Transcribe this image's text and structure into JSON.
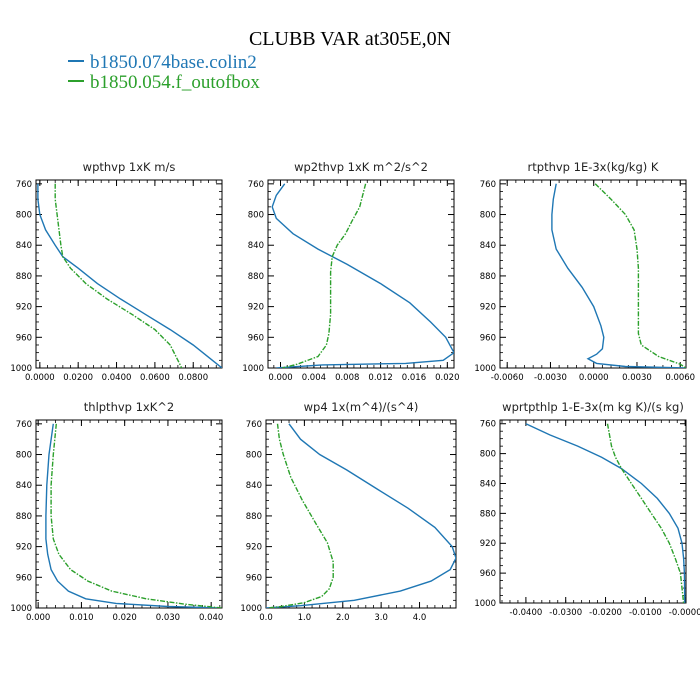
{
  "title": "CLUBB VAR at305E,0N",
  "colors": {
    "series_1": "#1f77b4",
    "series_2": "#2ca02c"
  },
  "legend": [
    {
      "label": "b1850.074base.colin2",
      "color": "#1f77b4"
    },
    {
      "label": "b1850.054.f_outofbox",
      "color": "#2ca02c"
    }
  ],
  "chart_data": [
    {
      "type": "line",
      "title": "wpthvp  1xK m/s",
      "xlim": [
        -0.002,
        0.095
      ],
      "ylim": [
        1000,
        755
      ],
      "y_inverted": true,
      "xticks": [
        "0.0000",
        "0.0200",
        "0.0400",
        "0.0600",
        "0.0800"
      ],
      "xtick_values": [
        0,
        0.02,
        0.04,
        0.06,
        0.08
      ],
      "yticks": [
        "760",
        "800",
        "840",
        "880",
        "920",
        "960",
        "1000"
      ],
      "ytick_values": [
        760,
        800,
        840,
        880,
        920,
        960,
        1000
      ],
      "series": [
        {
          "name": "b1850.074base.colin2",
          "x": [
            -0.001,
            -0.001,
            0.0,
            0.003,
            0.008,
            0.012,
            0.02,
            0.03,
            0.042,
            0.055,
            0.068,
            0.08,
            0.09,
            0.095
          ],
          "y": [
            760,
            780,
            800,
            820,
            840,
            855,
            870,
            890,
            910,
            930,
            950,
            970,
            990,
            1000
          ]
        },
        {
          "name": "b1850.054.f_outofbox",
          "x": [
            0.008,
            0.008,
            0.009,
            0.01,
            0.011,
            0.012,
            0.016,
            0.024,
            0.035,
            0.048,
            0.06,
            0.068,
            0.072,
            0.074
          ],
          "y": [
            760,
            780,
            800,
            820,
            840,
            855,
            870,
            890,
            910,
            930,
            950,
            970,
            990,
            1000
          ]
        }
      ]
    },
    {
      "type": "line",
      "title": "wp2thvp  1xK m^2/s^2",
      "xlim": [
        -0.0015,
        0.0208
      ],
      "ylim": [
        1000,
        755
      ],
      "y_inverted": true,
      "xticks": [
        "0.000",
        "0.004",
        "0.008",
        "0.012",
        "0.016",
        "0.020"
      ],
      "xtick_values": [
        0,
        0.004,
        0.008,
        0.012,
        0.016,
        0.02
      ],
      "yticks": [
        "760",
        "800",
        "840",
        "880",
        "920",
        "960",
        "1000"
      ],
      "ytick_values": [
        760,
        800,
        840,
        880,
        920,
        960,
        1000
      ],
      "series": [
        {
          "name": "b1850.074base.colin2",
          "x": [
            0.0005,
            -0.0005,
            -0.001,
            -0.0005,
            0.0015,
            0.0045,
            0.008,
            0.012,
            0.0155,
            0.018,
            0.0198,
            0.0208,
            0.0195,
            0.015,
            0.005,
            -0.0005
          ],
          "y": [
            760,
            775,
            790,
            805,
            825,
            845,
            865,
            890,
            915,
            940,
            960,
            980,
            990,
            994,
            996,
            1000
          ]
        },
        {
          "name": "b1850.054.f_outofbox",
          "x": [
            0.0102,
            0.0095,
            0.0085,
            0.0078,
            0.0068,
            0.0062,
            0.006,
            0.006,
            0.006,
            0.0058,
            0.0055,
            0.0045,
            0.002,
            0.0002
          ],
          "y": [
            760,
            790,
            810,
            825,
            840,
            855,
            875,
            900,
            930,
            955,
            970,
            985,
            995,
            1000
          ]
        }
      ]
    },
    {
      "type": "line",
      "title": "rtpthvp  1E-3x(kg/kg) K",
      "xlim": [
        -0.0065,
        0.0064
      ],
      "ylim": [
        1000,
        755
      ],
      "y_inverted": true,
      "xticks": [
        "-0.0060",
        "-0.0030",
        "0.0000",
        "0.0030",
        "0.0060"
      ],
      "xtick_values": [
        -0.006,
        -0.003,
        0,
        0.003,
        0.006
      ],
      "yticks": [
        "760",
        "800",
        "840",
        "880",
        "920",
        "960",
        "1000"
      ],
      "ytick_values": [
        760,
        800,
        840,
        880,
        920,
        960,
        1000
      ],
      "series": [
        {
          "name": "b1850.074base.colin2",
          "x": [
            -0.0026,
            -0.0028,
            -0.0029,
            -0.0029,
            -0.0026,
            -0.0018,
            -0.0008,
            0.0,
            0.0005,
            0.0007,
            0.0006,
            0.0002,
            -0.0004,
            0.0002,
            0.0022,
            0.0064
          ],
          "y": [
            760,
            780,
            800,
            820,
            845,
            870,
            895,
            920,
            945,
            960,
            975,
            982,
            988,
            994,
            998,
            1000
          ]
        },
        {
          "name": "b1850.054.f_outofbox",
          "x": [
            0.0001,
            0.0012,
            0.0022,
            0.0028,
            0.003,
            0.0031,
            0.0031,
            0.0031,
            0.0031,
            0.0033,
            0.0045,
            0.006,
            0.0064
          ],
          "y": [
            760,
            780,
            800,
            820,
            845,
            870,
            900,
            930,
            955,
            970,
            985,
            995,
            1000
          ]
        }
      ]
    },
    {
      "type": "line",
      "title": "thlpthvp  1xK^2",
      "xlim": [
        -0.0005,
        0.0425
      ],
      "ylim": [
        1000,
        755
      ],
      "y_inverted": true,
      "xticks": [
        "0.000",
        "0.010",
        "0.020",
        "0.030",
        "0.040"
      ],
      "xtick_values": [
        0,
        0.01,
        0.02,
        0.03,
        0.04
      ],
      "yticks": [
        "760",
        "800",
        "840",
        "880",
        "920",
        "960",
        "1000"
      ],
      "ytick_values": [
        760,
        800,
        840,
        880,
        920,
        960,
        1000
      ],
      "series": [
        {
          "name": "b1850.074base.colin2",
          "x": [
            0.0035,
            0.0025,
            0.002,
            0.0018,
            0.0018,
            0.0022,
            0.003,
            0.0045,
            0.007,
            0.011,
            0.018,
            0.03,
            0.042
          ],
          "y": [
            760,
            800,
            840,
            880,
            910,
            930,
            950,
            965,
            978,
            988,
            994,
            998,
            1000
          ]
        },
        {
          "name": "b1850.054.f_outofbox",
          "x": [
            0.0042,
            0.0035,
            0.003,
            0.003,
            0.0035,
            0.0048,
            0.0075,
            0.0115,
            0.017,
            0.025,
            0.034,
            0.0425
          ],
          "y": [
            760,
            800,
            840,
            880,
            910,
            930,
            950,
            965,
            978,
            988,
            995,
            1000
          ]
        }
      ]
    },
    {
      "type": "line",
      "title": "wp4  1x(m^4)/(s^4)",
      "xlim": [
        0.0,
        4.95
      ],
      "ylim": [
        1000,
        755
      ],
      "y_inverted": true,
      "xticks": [
        "0.0",
        "1.0",
        "2.0",
        "3.0",
        "4.0"
      ],
      "xtick_values": [
        0,
        1,
        2,
        3,
        4
      ],
      "yticks": [
        "760",
        "800",
        "840",
        "880",
        "920",
        "960",
        "1000"
      ],
      "ytick_values": [
        760,
        800,
        840,
        880,
        920,
        960,
        1000
      ],
      "series": [
        {
          "name": "b1850.074base.colin2",
          "x": [
            0.6,
            0.9,
            1.4,
            2.1,
            2.9,
            3.7,
            4.4,
            4.85,
            4.95,
            4.8,
            4.3,
            3.5,
            2.3,
            0.9,
            0.0
          ],
          "y": [
            760,
            780,
            800,
            820,
            845,
            870,
            895,
            920,
            935,
            950,
            965,
            978,
            990,
            997,
            1000
          ]
        },
        {
          "name": "b1850.054.f_outofbox",
          "x": [
            0.3,
            0.35,
            0.45,
            0.65,
            0.95,
            1.3,
            1.6,
            1.75,
            1.75,
            1.65,
            1.45,
            1.0,
            0.4,
            0.05
          ],
          "y": [
            760,
            780,
            800,
            830,
            860,
            890,
            915,
            940,
            960,
            975,
            985,
            993,
            998,
            1000
          ]
        }
      ]
    },
    {
      "type": "line",
      "title": "wprtpthlp  1-E-3x(m kg K)/(s kg)",
      "xlim": [
        -0.0465,
        0.0002
      ],
      "ylim": [
        1000,
        755
      ],
      "y_inverted": true,
      "xticks": [
        "-0.0400",
        "-0.0300",
        "-0.0200",
        "-0.0100",
        "-0.0000"
      ],
      "xtick_values": [
        -0.04,
        -0.03,
        -0.02,
        -0.01,
        0
      ],
      "yticks": [
        "760",
        "800",
        "840",
        "880",
        "920",
        "960",
        "1000"
      ],
      "ytick_values": [
        760,
        800,
        840,
        880,
        920,
        960,
        1000
      ],
      "series": [
        {
          "name": "b1850.074base.colin2",
          "x": [
            -0.04,
            -0.034,
            -0.027,
            -0.021,
            -0.016,
            -0.011,
            -0.007,
            -0.004,
            -0.0018,
            -0.0008,
            -0.0004,
            -0.0002,
            -0.0001
          ],
          "y": [
            760,
            775,
            790,
            805,
            820,
            840,
            860,
            880,
            900,
            920,
            940,
            960,
            1000
          ]
        },
        {
          "name": "b1850.054.f_outofbox",
          "x": [
            -0.0195,
            -0.019,
            -0.0185,
            -0.0175,
            -0.016,
            -0.0135,
            -0.011,
            -0.0085,
            -0.006,
            -0.004,
            -0.0025,
            -0.0012,
            -0.0004
          ],
          "y": [
            760,
            775,
            790,
            805,
            820,
            840,
            860,
            880,
            900,
            920,
            940,
            960,
            1000
          ]
        }
      ]
    }
  ]
}
